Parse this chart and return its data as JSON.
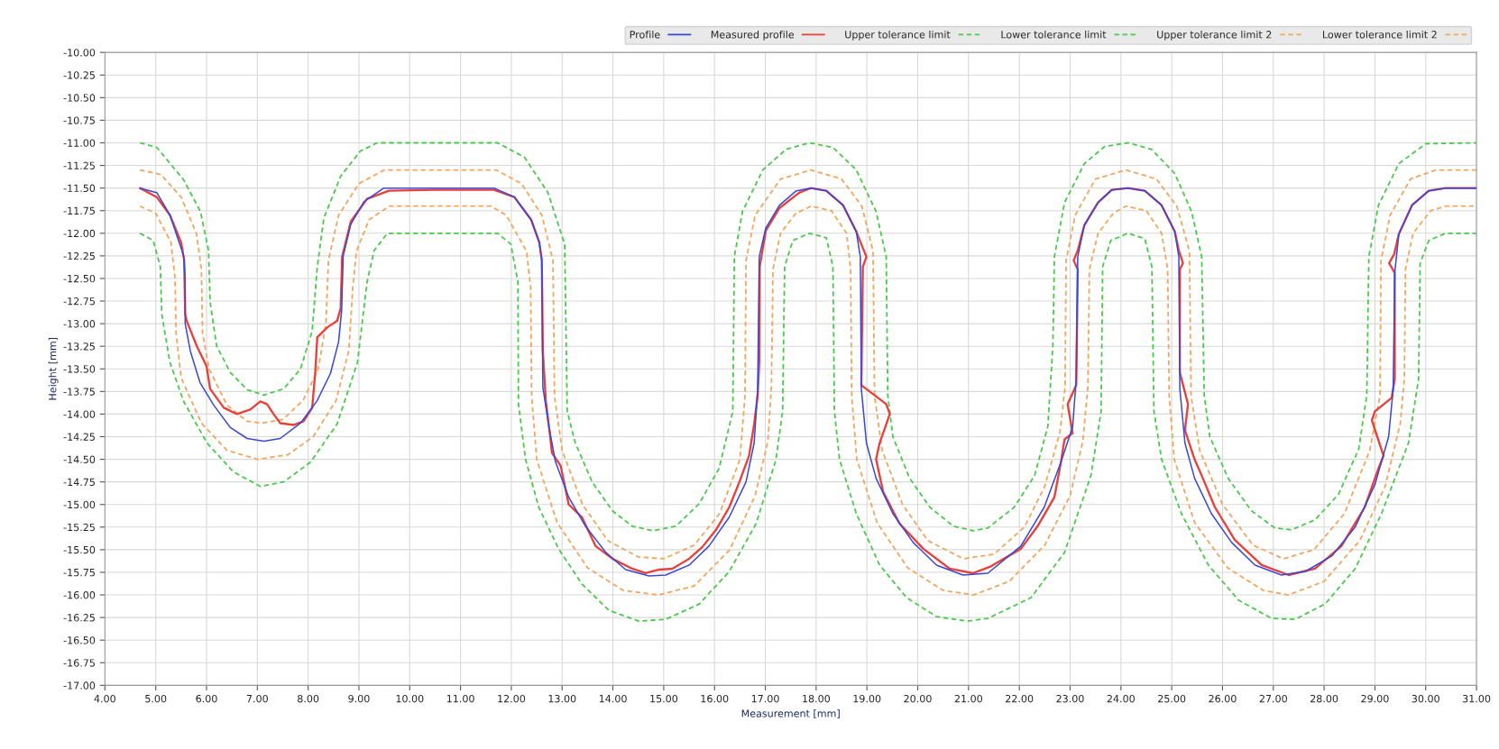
{
  "chart_data": {
    "type": "line",
    "xlabel": "Measurement [mm]",
    "ylabel": "Height [mm]",
    "xlim": [
      4,
      31
    ],
    "ylim": [
      -17,
      -10
    ],
    "xticks": [
      {
        "value": 4,
        "label": "4.00"
      },
      {
        "value": 5,
        "label": "5.00"
      },
      {
        "value": 6,
        "label": "6.00"
      },
      {
        "value": 7,
        "label": "7.00"
      },
      {
        "value": 8,
        "label": "8.00"
      },
      {
        "value": 9,
        "label": "9.00"
      },
      {
        "value": 10,
        "label": "10.00"
      },
      {
        "value": 11,
        "label": "11.00"
      },
      {
        "value": 12,
        "label": "12.00"
      },
      {
        "value": 13,
        "label": "13.00"
      },
      {
        "value": 14,
        "label": "14.00"
      },
      {
        "value": 15,
        "label": "15.00"
      },
      {
        "value": 16,
        "label": "16.00"
      },
      {
        "value": 17,
        "label": "17.00"
      },
      {
        "value": 18,
        "label": "18.00"
      },
      {
        "value": 19,
        "label": "19.00"
      },
      {
        "value": 20,
        "label": "20.00"
      },
      {
        "value": 21,
        "label": "21.00"
      },
      {
        "value": 22,
        "label": "22.00"
      },
      {
        "value": 23,
        "label": "23.00"
      },
      {
        "value": 24,
        "label": "24.00"
      },
      {
        "value": 25,
        "label": "25.00"
      },
      {
        "value": 26,
        "label": "26.00"
      },
      {
        "value": 27,
        "label": "27.00"
      },
      {
        "value": 28,
        "label": "28.00"
      },
      {
        "value": 29,
        "label": "29.00"
      },
      {
        "value": 30,
        "label": "30.00"
      },
      {
        "value": 31,
        "label": "31.00"
      }
    ],
    "yticks": [
      {
        "value": -10,
        "label": "-10.00"
      },
      {
        "value": -10.25,
        "label": "-10.25"
      },
      {
        "value": -10.5,
        "label": "-10.50"
      },
      {
        "value": -10.75,
        "label": "-10.75"
      },
      {
        "value": -11,
        "label": "-11.00"
      },
      {
        "value": -11.25,
        "label": "-11.25"
      },
      {
        "value": -11.5,
        "label": "-11.50"
      },
      {
        "value": -11.75,
        "label": "-11.75"
      },
      {
        "value": -12,
        "label": "-12.00"
      },
      {
        "value": -12.25,
        "label": "-12.25"
      },
      {
        "value": -12.5,
        "label": "-12.50"
      },
      {
        "value": -12.75,
        "label": "-12.75"
      },
      {
        "value": -13,
        "label": "-13.00"
      },
      {
        "value": -13.25,
        "label": "-13.25"
      },
      {
        "value": -13.5,
        "label": "-13.50"
      },
      {
        "value": -13.75,
        "label": "-13.75"
      },
      {
        "value": -14,
        "label": "-14.00"
      },
      {
        "value": -14.25,
        "label": "-14.25"
      },
      {
        "value": -14.5,
        "label": "-14.50"
      },
      {
        "value": -14.75,
        "label": "-14.75"
      },
      {
        "value": -15,
        "label": "-15.00"
      },
      {
        "value": -15.25,
        "label": "-15.25"
      },
      {
        "value": -15.5,
        "label": "-15.50"
      },
      {
        "value": -15.75,
        "label": "-15.75"
      },
      {
        "value": -16,
        "label": "-16.00"
      },
      {
        "value": -16.25,
        "label": "-16.25"
      },
      {
        "value": -16.5,
        "label": "-16.50"
      },
      {
        "value": -16.75,
        "label": "-16.75"
      },
      {
        "value": -17,
        "label": "-17.00"
      }
    ],
    "grid": true,
    "legend": "top right",
    "series": [
      {
        "name": "Profile",
        "color": "#3b48d6",
        "line_style": "solid",
        "x": [
          4.69,
          5.02,
          5.28,
          5.55,
          5.58,
          5.58,
          5.68,
          5.87,
          6.14,
          6.47,
          6.8,
          7.13,
          7.45,
          7.85,
          8.18,
          8.44,
          8.6,
          8.66,
          8.69,
          8.84,
          9.1,
          9.49,
          11.66,
          12.06,
          12.39,
          12.55,
          12.6,
          12.62,
          12.74,
          12.87,
          13.13,
          13.46,
          13.86,
          14.25,
          14.71,
          15.04,
          15.5,
          15.89,
          16.29,
          16.62,
          16.78,
          16.85,
          16.88,
          17.01,
          17.28,
          17.61,
          17.9,
          18.2,
          18.53,
          18.79,
          18.87,
          18.89,
          18.99,
          19.18,
          19.51,
          19.91,
          20.37,
          20.89,
          21.38,
          22.03,
          22.49,
          22.82,
          23.05,
          23.12,
          23.15,
          23.28,
          23.55,
          23.82,
          24.14,
          24.47,
          24.8,
          25.06,
          25.14,
          25.16,
          25.26,
          25.45,
          25.78,
          26.18,
          26.64,
          27.16,
          27.63,
          28.15,
          28.61,
          29.0,
          29.27,
          29.36,
          29.39,
          29.47,
          29.73,
          30.06,
          30.39,
          31.0
        ],
        "values": [
          -11.5,
          -11.55,
          -11.8,
          -12.25,
          -12.5,
          -13.0,
          -13.3,
          -13.65,
          -13.9,
          -14.15,
          -14.27,
          -14.3,
          -14.27,
          -14.1,
          -13.85,
          -13.55,
          -13.2,
          -12.85,
          -12.25,
          -11.9,
          -11.65,
          -11.5,
          -11.5,
          -11.6,
          -11.85,
          -12.1,
          -12.3,
          -13.7,
          -14.14,
          -14.53,
          -14.92,
          -15.24,
          -15.53,
          -15.72,
          -15.79,
          -15.78,
          -15.67,
          -15.46,
          -15.14,
          -14.75,
          -14.32,
          -13.72,
          -12.26,
          -11.94,
          -11.69,
          -11.53,
          -11.5,
          -11.53,
          -11.69,
          -11.98,
          -12.26,
          -13.72,
          -14.32,
          -14.71,
          -15.1,
          -15.42,
          -15.67,
          -15.78,
          -15.76,
          -15.46,
          -15.03,
          -14.53,
          -14.14,
          -13.61,
          -12.26,
          -11.91,
          -11.66,
          -11.52,
          -11.5,
          -11.53,
          -11.69,
          -11.98,
          -12.26,
          -13.72,
          -14.32,
          -14.71,
          -15.1,
          -15.42,
          -15.67,
          -15.78,
          -15.74,
          -15.57,
          -15.25,
          -14.78,
          -14.25,
          -13.72,
          -12.44,
          -12.01,
          -11.69,
          -11.53,
          -11.5,
          -11.5
        ]
      },
      {
        "name": "Measured profile",
        "color": "#e8403a",
        "line_style": "solid",
        "x": [
          4.69,
          5.02,
          5.28,
          5.5,
          5.56,
          5.58,
          5.61,
          5.81,
          6.0,
          6.07,
          6.34,
          6.6,
          6.86,
          7.06,
          7.19,
          7.32,
          7.45,
          7.72,
          7.91,
          8.08,
          8.14,
          8.18,
          8.38,
          8.57,
          8.64,
          8.67,
          8.84,
          9.16,
          9.59,
          10.5,
          11.66,
          12.06,
          12.39,
          12.55,
          12.6,
          12.62,
          12.68,
          12.75,
          12.8,
          12.97,
          13.13,
          13.39,
          13.66,
          13.99,
          14.38,
          14.64,
          14.91,
          15.17,
          15.5,
          15.76,
          16.03,
          16.29,
          16.49,
          16.68,
          16.78,
          16.85,
          16.88,
          16.89,
          17.01,
          17.28,
          17.67,
          17.9,
          18.2,
          18.53,
          18.79,
          18.86,
          18.99,
          18.92,
          18.89,
          19.38,
          19.45,
          19.25,
          19.18,
          19.32,
          19.64,
          20.11,
          20.63,
          21.09,
          21.42,
          22.03,
          22.36,
          22.69,
          22.82,
          22.89,
          23.05,
          22.95,
          23.12,
          23.15,
          23.07,
          23.15,
          23.28,
          23.55,
          23.82,
          24.14,
          24.47,
          24.8,
          25.06,
          25.14,
          25.22,
          25.16,
          25.16,
          25.32,
          25.26,
          25.45,
          25.59,
          25.85,
          26.24,
          26.77,
          27.3,
          27.82,
          28.34,
          28.8,
          29.07,
          29.17,
          28.94,
          29.0,
          29.33,
          29.39,
          29.39,
          29.28,
          29.38,
          29.47,
          29.73,
          30.06,
          30.39,
          31.0
        ],
        "values": [
          -11.5,
          -11.6,
          -11.8,
          -12.1,
          -12.3,
          -12.9,
          -12.97,
          -13.25,
          -13.47,
          -13.72,
          -13.93,
          -14.0,
          -13.95,
          -13.86,
          -13.89,
          -14.0,
          -14.1,
          -14.12,
          -14.08,
          -13.93,
          -13.54,
          -13.15,
          -13.04,
          -12.97,
          -12.83,
          -12.26,
          -11.87,
          -11.62,
          -11.53,
          -11.52,
          -11.52,
          -11.6,
          -11.85,
          -12.1,
          -12.3,
          -13.3,
          -13.86,
          -14.18,
          -14.43,
          -14.57,
          -15.0,
          -15.14,
          -15.46,
          -15.6,
          -15.71,
          -15.76,
          -15.72,
          -15.71,
          -15.6,
          -15.47,
          -15.28,
          -15.03,
          -14.75,
          -14.46,
          -14.11,
          -13.79,
          -13.43,
          -12.37,
          -11.97,
          -11.72,
          -11.55,
          -11.5,
          -11.53,
          -11.69,
          -11.98,
          -12.08,
          -12.26,
          -12.37,
          -13.68,
          -13.89,
          -14.0,
          -14.32,
          -14.5,
          -14.86,
          -15.21,
          -15.49,
          -15.71,
          -15.76,
          -15.69,
          -15.49,
          -15.24,
          -14.92,
          -14.53,
          -14.28,
          -14.21,
          -13.89,
          -13.68,
          -12.4,
          -12.3,
          -12.19,
          -11.91,
          -11.66,
          -11.52,
          -11.5,
          -11.53,
          -11.69,
          -11.98,
          -12.19,
          -12.33,
          -12.4,
          -13.54,
          -13.89,
          -14.18,
          -14.5,
          -14.68,
          -15.03,
          -15.39,
          -15.67,
          -15.78,
          -15.71,
          -15.46,
          -15.03,
          -14.6,
          -14.46,
          -14.07,
          -13.97,
          -13.82,
          -13.61,
          -12.44,
          -12.33,
          -12.23,
          -12.01,
          -11.69,
          -11.53,
          -11.5,
          -11.5
        ]
      },
      {
        "name": "Upper tolerance limit",
        "color": "#4cc94c",
        "line_style": "dashed",
        "x": [
          4.69,
          5.02,
          5.55,
          5.88,
          6.04,
          6.07,
          6.2,
          6.47,
          6.8,
          7.13,
          7.52,
          7.85,
          8.08,
          8.18,
          8.31,
          8.64,
          9.03,
          9.36,
          11.73,
          12.26,
          12.72,
          13.05,
          13.1,
          13.26,
          13.59,
          13.99,
          14.38,
          14.78,
          15.24,
          15.7,
          16.09,
          16.36,
          16.39,
          16.55,
          16.95,
          17.41,
          17.87,
          18.33,
          18.79,
          19.18,
          19.38,
          19.41,
          19.51,
          19.84,
          20.24,
          20.7,
          21.09,
          21.38,
          21.9,
          22.3,
          22.56,
          22.66,
          22.69,
          22.89,
          23.28,
          23.68,
          24.14,
          24.6,
          25.06,
          25.39,
          25.59,
          25.64,
          25.75,
          26.11,
          26.57,
          27.03,
          27.36,
          27.82,
          28.28,
          28.68,
          28.84,
          28.88,
          29.07,
          29.47,
          30.0,
          31.0
        ],
        "values": [
          -11.0,
          -11.05,
          -11.41,
          -11.76,
          -12.19,
          -12.76,
          -13.25,
          -13.54,
          -13.73,
          -13.79,
          -13.72,
          -13.5,
          -13.08,
          -12.37,
          -11.83,
          -11.37,
          -11.09,
          -11.0,
          -11.0,
          -11.16,
          -11.55,
          -12.12,
          -13.97,
          -14.32,
          -14.75,
          -15.07,
          -15.24,
          -15.29,
          -15.24,
          -14.99,
          -14.6,
          -13.97,
          -12.26,
          -11.76,
          -11.3,
          -11.07,
          -11.0,
          -11.05,
          -11.3,
          -11.76,
          -12.26,
          -13.79,
          -14.25,
          -14.71,
          -15.03,
          -15.24,
          -15.29,
          -15.26,
          -15.03,
          -14.68,
          -14.14,
          -13.25,
          -12.26,
          -11.66,
          -11.23,
          -11.04,
          -11.0,
          -11.07,
          -11.34,
          -11.76,
          -12.26,
          -13.79,
          -14.25,
          -14.71,
          -15.07,
          -15.26,
          -15.28,
          -15.17,
          -14.89,
          -14.39,
          -13.79,
          -12.26,
          -11.69,
          -11.23,
          -11.01,
          -11.0
        ]
      },
      {
        "name": "Lower tolerance limit",
        "color": "#4cc94c",
        "line_style": "dashed",
        "x": [
          4.69,
          4.95,
          5.09,
          5.12,
          5.28,
          5.55,
          6.01,
          6.53,
          7.06,
          7.52,
          8.05,
          8.57,
          8.97,
          9.16,
          9.3,
          9.56,
          11.73,
          11.99,
          12.13,
          12.14,
          12.28,
          12.54,
          12.93,
          13.39,
          13.92,
          14.51,
          15.04,
          15.7,
          16.29,
          16.82,
          17.21,
          17.34,
          17.38,
          17.54,
          17.87,
          18.2,
          18.33,
          18.36,
          18.46,
          18.79,
          19.25,
          19.78,
          20.37,
          20.97,
          21.38,
          22.23,
          22.89,
          23.41,
          23.61,
          23.64,
          23.8,
          24.14,
          24.47,
          24.61,
          24.65,
          24.8,
          25.19,
          25.72,
          26.32,
          26.97,
          27.43,
          28.02,
          28.61,
          29.13,
          29.66,
          29.86,
          29.89,
          30.06,
          30.39,
          31.0
        ],
        "values": [
          -12.0,
          -12.08,
          -12.37,
          -12.9,
          -13.43,
          -13.86,
          -14.32,
          -14.64,
          -14.8,
          -14.75,
          -14.53,
          -14.11,
          -13.43,
          -12.54,
          -12.19,
          -12.0,
          -12.0,
          -12.12,
          -12.54,
          -13.89,
          -14.5,
          -15.03,
          -15.49,
          -15.88,
          -16.17,
          -16.29,
          -16.27,
          -16.1,
          -15.74,
          -15.21,
          -14.5,
          -13.97,
          -12.37,
          -12.08,
          -12.0,
          -12.05,
          -12.37,
          -13.97,
          -14.5,
          -15.1,
          -15.67,
          -16.03,
          -16.24,
          -16.29,
          -16.26,
          -16.03,
          -15.53,
          -14.68,
          -13.97,
          -12.37,
          -12.08,
          -12.0,
          -12.06,
          -12.37,
          -13.97,
          -14.5,
          -15.1,
          -15.67,
          -16.06,
          -16.26,
          -16.27,
          -16.1,
          -15.71,
          -15.1,
          -14.32,
          -13.61,
          -12.33,
          -12.08,
          -12.0,
          -12.0
        ]
      },
      {
        "name": "Upper tolerance limit 2",
        "color": "#f2a65e",
        "line_style": "dashed",
        "x": [
          4.69,
          5.1,
          5.5,
          5.8,
          5.9,
          5.92,
          6.05,
          6.4,
          6.8,
          7.1,
          7.5,
          7.9,
          8.2,
          8.35,
          8.4,
          8.6,
          9.0,
          9.5,
          11.7,
          12.2,
          12.6,
          12.82,
          12.85,
          13.0,
          13.4,
          13.9,
          14.5,
          15.0,
          15.6,
          16.1,
          16.5,
          16.6,
          16.62,
          16.8,
          17.3,
          17.9,
          18.5,
          18.9,
          19.12,
          19.15,
          19.3,
          19.7,
          20.2,
          20.9,
          21.5,
          22.1,
          22.5,
          22.8,
          22.9,
          22.92,
          23.1,
          23.5,
          24.1,
          24.7,
          25.1,
          25.35,
          25.38,
          25.55,
          26.0,
          26.6,
          27.2,
          27.8,
          28.4,
          28.9,
          29.1,
          29.12,
          29.3,
          29.7,
          30.2,
          31.0
        ],
        "values": [
          -11.3,
          -11.35,
          -11.6,
          -12.0,
          -12.4,
          -13.1,
          -13.5,
          -13.9,
          -14.08,
          -14.1,
          -14.06,
          -13.85,
          -13.5,
          -13.0,
          -12.3,
          -11.8,
          -11.45,
          -11.3,
          -11.3,
          -11.45,
          -11.8,
          -12.3,
          -13.8,
          -14.4,
          -15.0,
          -15.4,
          -15.58,
          -15.6,
          -15.45,
          -15.1,
          -14.5,
          -13.8,
          -12.3,
          -11.8,
          -11.4,
          -11.3,
          -11.4,
          -11.7,
          -12.2,
          -13.8,
          -14.4,
          -15.0,
          -15.4,
          -15.6,
          -15.55,
          -15.25,
          -14.8,
          -14.2,
          -13.7,
          -12.3,
          -11.8,
          -11.4,
          -11.3,
          -11.4,
          -11.7,
          -12.2,
          -13.8,
          -14.4,
          -15.0,
          -15.45,
          -15.6,
          -15.5,
          -15.1,
          -14.4,
          -13.8,
          -12.3,
          -11.8,
          -11.4,
          -11.3,
          -11.3
        ]
      },
      {
        "name": "Lower tolerance limit 2",
        "color": "#f2a65e",
        "line_style": "dashed",
        "x": [
          4.69,
          5.0,
          5.3,
          5.38,
          5.4,
          5.5,
          5.9,
          6.4,
          7.0,
          7.6,
          8.1,
          8.55,
          8.8,
          8.88,
          8.95,
          9.2,
          9.6,
          11.6,
          11.9,
          12.3,
          12.38,
          12.4,
          12.5,
          12.9,
          13.5,
          14.2,
          14.9,
          15.6,
          16.3,
          16.8,
          17.05,
          17.12,
          17.15,
          17.3,
          17.6,
          17.9,
          18.3,
          18.6,
          18.68,
          18.7,
          18.8,
          19.2,
          19.8,
          20.5,
          21.1,
          21.8,
          22.5,
          23.0,
          23.25,
          23.35,
          23.38,
          23.55,
          23.85,
          24.1,
          24.5,
          24.8,
          24.92,
          24.95,
          25.05,
          25.45,
          26.1,
          26.8,
          27.3,
          28.0,
          28.7,
          29.2,
          29.5,
          29.58,
          29.6,
          29.75,
          30.1,
          30.4,
          31.0
        ],
        "values": [
          -11.7,
          -11.78,
          -12.1,
          -12.5,
          -13.1,
          -13.6,
          -14.1,
          -14.4,
          -14.5,
          -14.45,
          -14.25,
          -13.85,
          -13.3,
          -12.6,
          -12.2,
          -11.85,
          -11.7,
          -11.7,
          -11.8,
          -12.2,
          -12.6,
          -13.8,
          -14.5,
          -15.2,
          -15.7,
          -15.95,
          -16.0,
          -15.9,
          -15.5,
          -14.9,
          -14.3,
          -13.7,
          -12.4,
          -12.0,
          -11.78,
          -11.7,
          -11.75,
          -12.0,
          -12.4,
          -13.8,
          -14.5,
          -15.2,
          -15.7,
          -15.95,
          -16.0,
          -15.85,
          -15.45,
          -14.9,
          -14.3,
          -13.7,
          -12.4,
          -12.0,
          -11.78,
          -11.7,
          -11.75,
          -12.0,
          -12.4,
          -13.8,
          -14.5,
          -15.2,
          -15.7,
          -15.95,
          -16.0,
          -15.85,
          -15.4,
          -14.8,
          -14.1,
          -13.6,
          -12.4,
          -12.0,
          -11.75,
          -11.7,
          -11.7
        ]
      }
    ]
  }
}
